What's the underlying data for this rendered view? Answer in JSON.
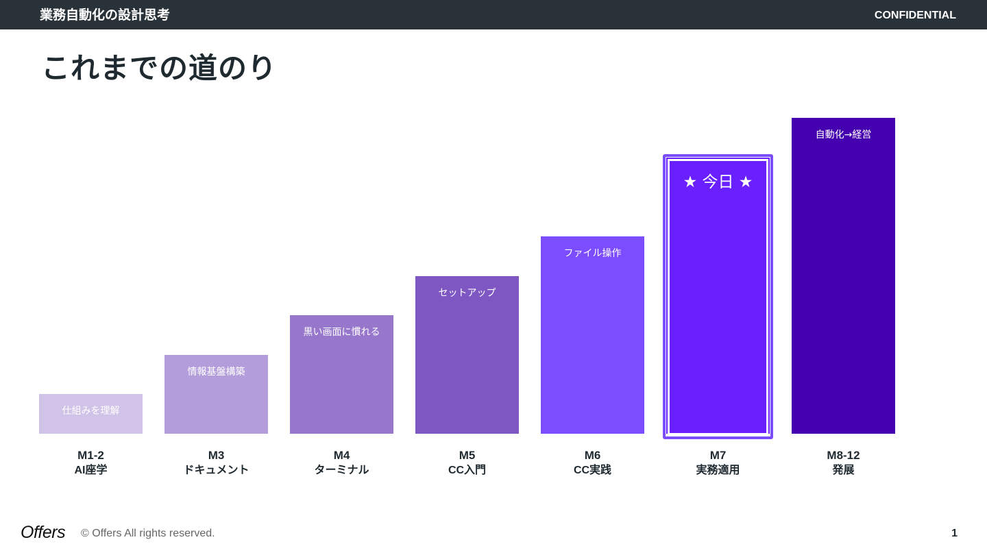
{
  "header": {
    "deck_title": "業務自動化の設計思考",
    "confidential": "CONFIDENTIAL"
  },
  "slide": {
    "title": "これまでの道のり"
  },
  "chart_data": {
    "type": "bar",
    "categories": [
      "M1-2",
      "M3",
      "M4",
      "M5",
      "M6",
      "M7",
      "M8-12"
    ],
    "category_names": [
      "AI座学",
      "ドキュメント",
      "ターミナル",
      "CC入門",
      "CC実践",
      "実務適用",
      "発展"
    ],
    "bar_labels": [
      "仕組みを理解",
      "情報基盤構築",
      "黒い画面に慣れる",
      "セットアップ",
      "ファイル操作",
      "★ 今日 ★",
      "自動化→経営"
    ],
    "values": [
      1,
      2,
      3,
      4,
      5,
      7,
      8
    ],
    "colors": [
      "#d1c3e7",
      "#b39ddb",
      "#9777cc",
      "#7e57c2",
      "#7c4dff",
      "#6a1fff",
      "#4500b0"
    ],
    "highlight_index": 5,
    "ylim": [
      0,
      8
    ],
    "grid": false,
    "legend": "none"
  },
  "footer": {
    "logo": "Offers",
    "copyright": "© Offers All rights reserved.",
    "page": "1"
  }
}
